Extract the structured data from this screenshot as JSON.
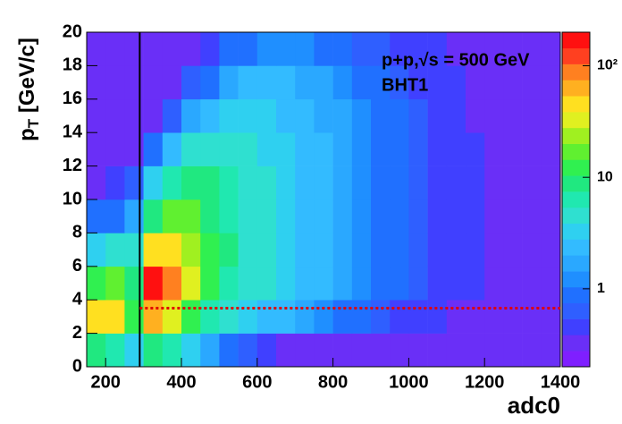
{
  "chart_data": {
    "type": "heatmap",
    "xlabel": "adc0",
    "ylabel": [
      "p",
      "T",
      " [GeV/c]"
    ],
    "annotations": [
      "p+p,√s = 500 GeV",
      "BHT1"
    ],
    "xbins": [
      150,
      200,
      250,
      300,
      350,
      400,
      450,
      500,
      550,
      600,
      650,
      700,
      750,
      800,
      850,
      900,
      950,
      1000,
      1050,
      1100,
      1150,
      1200,
      1250,
      1300,
      1350,
      1400
    ],
    "ybins": [
      0,
      2,
      4,
      6,
      8,
      10,
      12,
      14,
      16,
      18,
      20
    ],
    "z": [
      [
        8,
        6,
        3,
        10,
        6,
        3,
        1.5,
        1,
        0.6,
        0.4,
        0.3,
        0.3,
        0.3,
        0.3,
        0.3,
        0.3,
        0.3,
        0.3,
        0.3,
        0.3,
        0.3,
        0.3,
        0.3,
        0.3,
        0.3
      ],
      [
        40,
        50,
        12,
        60,
        30,
        12,
        6,
        4,
        3,
        2.5,
        2,
        1.5,
        1.2,
        1,
        0.8,
        0.6,
        0.5,
        0.4,
        0.4,
        0.3,
        0.3,
        0.3,
        0.3,
        0.3,
        0.3
      ],
      [
        12,
        15,
        8,
        150,
        80,
        30,
        12,
        7,
        5,
        4,
        3,
        2.5,
        2,
        1.5,
        1.2,
        1,
        0.8,
        0.6,
        0.5,
        0.4,
        0.4,
        0.3,
        0.3,
        0.3,
        0.3
      ],
      [
        3,
        4,
        4,
        40,
        40,
        25,
        12,
        8,
        5,
        4,
        3,
        2.5,
        2,
        1.5,
        1.2,
        1,
        0.8,
        0.6,
        0.5,
        0.4,
        0.4,
        0.3,
        0.3,
        0.3,
        0.3
      ],
      [
        0.8,
        1,
        1.5,
        10,
        15,
        15,
        10,
        7,
        5,
        4,
        3,
        2.5,
        2,
        1.5,
        1.2,
        1,
        0.8,
        0.6,
        0.5,
        0.4,
        0.4,
        0.3,
        0.3,
        0.3,
        0.3
      ],
      [
        0.3,
        0.4,
        0.6,
        3,
        6,
        8,
        8,
        6,
        5,
        4,
        3,
        2.5,
        2,
        1.5,
        1.2,
        1,
        0.8,
        0.6,
        0.5,
        0.4,
        0.4,
        0.3,
        0.3,
        0.3,
        0.3
      ],
      [
        0.3,
        0.3,
        0.3,
        0.8,
        2,
        4,
        5,
        5,
        4,
        3.5,
        3,
        2.5,
        2,
        1.5,
        1.2,
        1,
        0.8,
        0.6,
        0.5,
        0.4,
        0.4,
        0.3,
        0.3,
        0.3,
        0.3
      ],
      [
        0.3,
        0.3,
        0.3,
        0.3,
        0.6,
        1.5,
        2.5,
        3,
        3,
        3,
        2.5,
        2,
        1.8,
        1.5,
        1.2,
        1,
        0.8,
        0.6,
        0.5,
        0.4,
        0.3,
        0.3,
        0.3,
        0.3,
        0.3
      ],
      [
        0.3,
        0.3,
        0.3,
        0.3,
        0.3,
        0.6,
        1,
        1.5,
        2,
        2,
        2,
        1.8,
        1.5,
        1.2,
        1,
        0.8,
        0.6,
        0.5,
        0.4,
        0.4,
        0.3,
        0.3,
        0.3,
        0.3,
        0.3
      ],
      [
        0.3,
        0.3,
        0.3,
        0.3,
        0.3,
        0.3,
        0.5,
        0.8,
        1,
        1.2,
        1.2,
        1.2,
        1,
        0.8,
        0.7,
        0.6,
        0.5,
        0.4,
        0.4,
        0.3,
        0.3,
        0.3,
        0.3,
        0.3,
        0.3
      ]
    ],
    "xlim": [
      150,
      1400
    ],
    "ylim": [
      0,
      20
    ],
    "xticks": [
      200,
      400,
      600,
      800,
      1000,
      1200,
      1400
    ],
    "yticks": [
      0,
      2,
      4,
      6,
      8,
      10,
      12,
      14,
      16,
      18,
      20
    ],
    "zlim": [
      0.2,
      200
    ],
    "zlog": true,
    "zticks": [
      1,
      10,
      {
        "value": 100,
        "label": "10²"
      }
    ],
    "palette": [
      "#7f1fff",
      "#6a2ff7",
      "#4040ff",
      "#2f5fff",
      "#2070ff",
      "#1f8fff",
      "#2aa8ff",
      "#33bbff",
      "#2fd0f0",
      "#2fe0d0",
      "#20e8b0",
      "#20e880",
      "#30f050",
      "#60f030",
      "#a0f020",
      "#e0f020",
      "#ffe020",
      "#ffb020",
      "#ff8020",
      "#ff4020",
      "#ff1010"
    ],
    "vlines": [
      {
        "x": 290,
        "color": "#000000"
      }
    ],
    "hlines": [
      {
        "y": 3.5,
        "color": "#e00000"
      }
    ]
  }
}
